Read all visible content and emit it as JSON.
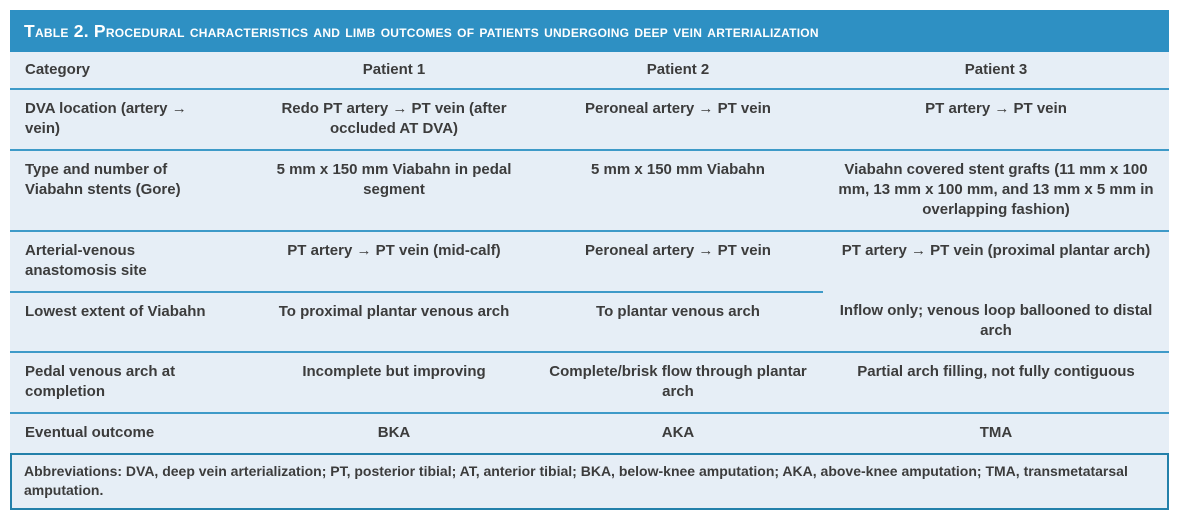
{
  "colors": {
    "header_bar_blue": "#2E90C3",
    "body_light_blue": "#E6EEF6",
    "row_separator_blue": "#3E9AC8",
    "footnote_border_teal": "#2380AA",
    "body_text": "#3C3C3C",
    "title_text": "#FFFFFF"
  },
  "table": {
    "title": "Table 2. Procedural characteristics and limb outcomes of patients undergoing deep vein arterialization",
    "columns": [
      "Category",
      "Patient 1",
      "Patient 2",
      "Patient 3"
    ],
    "rows": [
      {
        "category": "DVA location (artery → vein)",
        "patient1": "Redo PT artery → PT vein (after occluded AT DVA)",
        "patient2": "Peroneal artery → PT vein",
        "patient3": "PT artery → PT vein"
      },
      {
        "category": "Type and number of Viabahn stents (Gore)",
        "patient1": "5 mm x 150 mm Viabahn in pedal segment",
        "patient2": "5 mm x 150 mm Viabahn",
        "patient3": "Viabahn covered stent grafts (11 mm x 100 mm, 13 mm x 100 mm, and 13 mm x 5 mm in overlapping fashion)"
      },
      {
        "category": "Arterial-venous anastomosis site",
        "patient1": "PT artery → PT vein (mid-calf)",
        "patient2": "Peroneal artery → PT vein",
        "patient3": "PT artery → PT vein (proximal plantar arch)"
      },
      {
        "category": "Lowest extent of Viabahn",
        "patient1": "To proximal plantar venous arch",
        "patient2": "To plantar venous arch",
        "patient3": "Inflow only; venous loop ballooned to distal arch"
      },
      {
        "category": "Pedal venous arch at completion",
        "patient1": "Incomplete but improving",
        "patient2": "Complete/brisk flow through plantar arch",
        "patient3": "Partial arch filling, not fully contiguous"
      },
      {
        "category": "Eventual outcome",
        "patient1": "BKA",
        "patient2": "AKA",
        "patient3": "TMA"
      }
    ],
    "footnote": "Abbreviations: DVA, deep vein arterialization; PT, posterior tibial; AT, anterior tibial; BKA, below-knee amputation; AKA, above-knee amputation; TMA, transmetatarsal amputation."
  }
}
